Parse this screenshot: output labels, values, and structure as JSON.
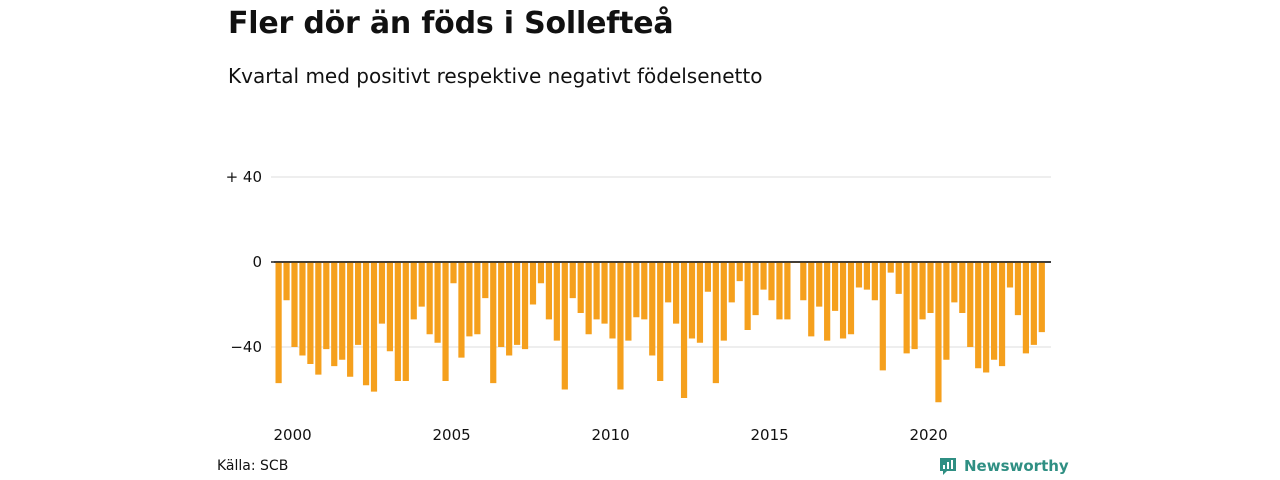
{
  "header": {
    "title": "Fler dör än föds i Sollefteå",
    "subtitle": "Kvartal med positivt respektive negativt födelsenetto"
  },
  "footer": {
    "source": "Källa: SCB",
    "brand": "Newsworthy"
  },
  "colors": {
    "bar": "#f5a01d",
    "grid": "#dddddd",
    "zero_line": "#222222",
    "brand": "#2f8f83"
  },
  "chart_data": {
    "type": "bar",
    "x_start": "2000-Q1",
    "x_ticks": [
      "2000",
      "2005",
      "2010",
      "2015",
      "2020"
    ],
    "y_ticks": [
      "+ 40",
      "0",
      "−40"
    ],
    "y_tick_values": [
      40,
      0,
      -40
    ],
    "ylim": [
      -68,
      40
    ],
    "grid": true,
    "values": [
      -57,
      -18,
      -40,
      -44,
      -48,
      -53,
      -41,
      -49,
      -46,
      -54,
      -39,
      -58,
      -61,
      -29,
      -42,
      -56,
      -56,
      -27,
      -21,
      -34,
      -38,
      -56,
      -10,
      -45,
      -35,
      -34,
      -17,
      -57,
      -40,
      -44,
      -39,
      -41,
      -20,
      -10,
      -27,
      -37,
      -60,
      -17,
      -24,
      -34,
      -27,
      -29,
      -36,
      -60,
      -37,
      -26,
      -27,
      -44,
      -56,
      -19,
      -29,
      -64,
      -36,
      -38,
      -14,
      -57,
      -37,
      -19,
      -9,
      -32,
      -25,
      -13,
      -18,
      -27,
      -27,
      0,
      -18,
      -35,
      -21,
      -37,
      -23,
      -36,
      -34,
      -12,
      -13,
      -18,
      -51,
      -5,
      -15,
      -43,
      -41,
      -27,
      -24,
      -66,
      -46,
      -19,
      -24,
      -40,
      -50,
      -52,
      -46,
      -49,
      -12,
      -25,
      -43,
      -39,
      -33
    ]
  }
}
